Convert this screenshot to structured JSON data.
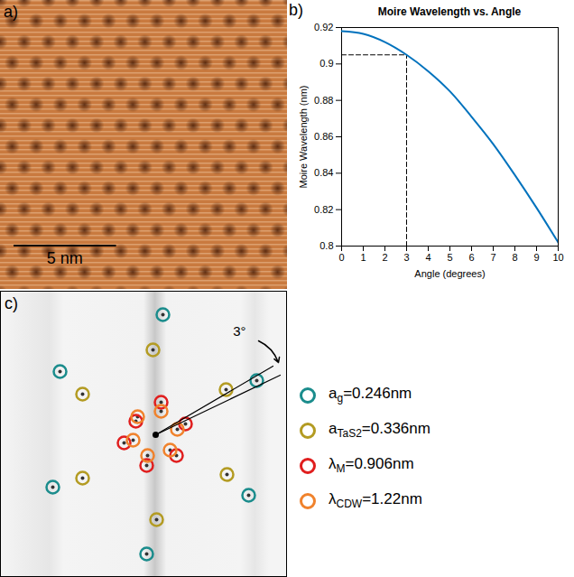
{
  "chart_data": [
    {
      "panel_label": "a)",
      "type": "image",
      "color": "#c97a3f",
      "scale_bar": {
        "label": "5 nm",
        "length_nm": 5
      },
      "field_of_view_nm": 14
    },
    {
      "panel_label": "b)",
      "type": "line",
      "title": "Moire Wavelength vs. Angle",
      "x_label": "Angle (degrees)",
      "y_label": "Moire Wavelength (nm)",
      "x": [
        0,
        1,
        2,
        3,
        4,
        5,
        6,
        7,
        8,
        9,
        10
      ],
      "values": [
        0.918,
        0.9165,
        0.912,
        0.905,
        0.896,
        0.885,
        0.871,
        0.856,
        0.839,
        0.821,
        0.802
      ],
      "color": "#0072bd",
      "xlim": [
        0,
        10
      ],
      "ylim": [
        0.8,
        0.92
      ],
      "xticks": [
        0,
        1,
        2,
        3,
        4,
        5,
        6,
        7,
        8,
        9,
        10
      ],
      "yticks": [
        0.8,
        0.82,
        0.84,
        0.86,
        0.88,
        0.9,
        0.92
      ],
      "guide": {
        "x": 3,
        "y": 0.905,
        "line_style": "dashed"
      }
    },
    {
      "panel_label": "c)",
      "type": "scatter",
      "marker": "ring",
      "tick_labels": false,
      "legend": "right",
      "xlim": [
        -172,
        146
      ],
      "ylim": [
        -158,
        159
      ],
      "center": {
        "x": 0,
        "y": 0
      },
      "series": [
        {
          "name": "a",
          "subscript": "g",
          "suffix": "=0.246nm",
          "color": "#1a8c8c",
          "x": [
            8,
            -106,
            112,
            -114,
            103,
            -10
          ],
          "y": [
            133,
            70,
            60,
            -58,
            -67,
            -132
          ]
        },
        {
          "name": "a",
          "subscript": "TaS2",
          "suffix": "=0.336nm",
          "color": "#b39b22",
          "x": [
            -3,
            -81,
            78,
            -81,
            79,
            1
          ],
          "y": [
            94,
            45,
            50,
            -48,
            -44,
            -94
          ]
        },
        {
          "name": "λ",
          "subscript": "M",
          "suffix": "=0.906nm",
          "color": "#e01e1e",
          "x": [
            6,
            33,
            -35,
            -10,
            23,
            -22
          ],
          "y": [
            36,
            12,
            -9,
            -34,
            -23,
            15
          ]
        },
        {
          "name": "λ",
          "subscript": "CDW",
          "suffix": "=1.22nm",
          "color": "#f0822c",
          "x": [
            -20,
            6,
            24,
            -25,
            -9,
            16
          ],
          "y": [
            20,
            26,
            6,
            -6,
            -23,
            -17
          ]
        }
      ],
      "annotation": {
        "text": "3°",
        "x": 100,
        "y": 114,
        "lines": [
          {
            "x": [
              0,
              130
            ],
            "y": [
              0,
              76
            ]
          },
          {
            "x": [
              0,
              138
            ],
            "y": [
              0,
              66
            ]
          }
        ],
        "arrow": {
          "x1": 114,
          "y1": 104,
          "x2": 136,
          "y2": 80
        }
      }
    }
  ]
}
